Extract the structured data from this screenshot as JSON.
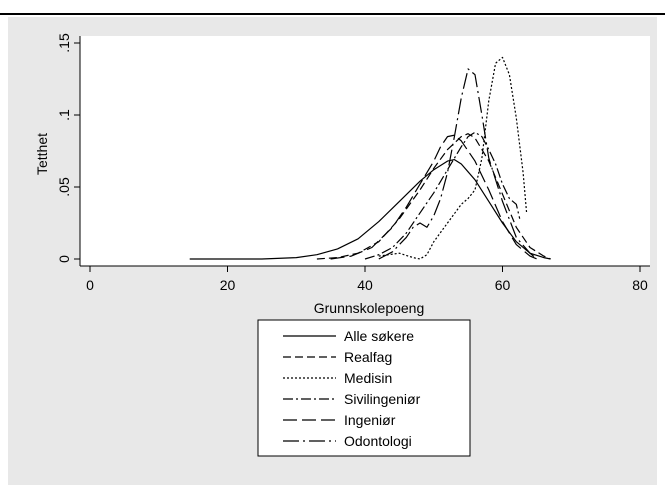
{
  "chart_data": {
    "type": "line",
    "xlabel": "Grunnskolepoeng",
    "ylabel": "Tetthet",
    "xlim": [
      0,
      80
    ],
    "ylim": [
      0,
      0.15
    ],
    "x_ticks": [
      "0",
      "20",
      "40",
      "60",
      "80"
    ],
    "y_ticks": [
      "0",
      ".05",
      ".1",
      ".15"
    ],
    "grid": false,
    "legend_position": "bottom",
    "background_color": "#e8e8e8",
    "plot_color": "#ffffff",
    "series": [
      {
        "name": "Alle søkere",
        "dash": "solid",
        "points": [
          [
            14.5,
            0
          ],
          [
            20,
            0
          ],
          [
            25,
            0
          ],
          [
            30,
            0.001
          ],
          [
            33,
            0.003
          ],
          [
            36,
            0.007
          ],
          [
            39,
            0.014
          ],
          [
            42,
            0.026
          ],
          [
            45,
            0.04
          ],
          [
            48,
            0.054
          ],
          [
            50,
            0.062
          ],
          [
            52,
            0.068
          ],
          [
            53,
            0.069
          ],
          [
            54,
            0.066
          ],
          [
            56,
            0.055
          ],
          [
            58,
            0.04
          ],
          [
            60,
            0.025
          ],
          [
            62,
            0.012
          ],
          [
            64,
            0.004
          ],
          [
            66,
            0.001
          ],
          [
            67,
            0
          ]
        ]
      },
      {
        "name": "Realfag",
        "dash": "dashed",
        "points": [
          [
            33,
            0
          ],
          [
            36,
            0.001
          ],
          [
            39,
            0.004
          ],
          [
            42,
            0.012
          ],
          [
            45,
            0.028
          ],
          [
            48,
            0.048
          ],
          [
            50,
            0.063
          ],
          [
            52,
            0.076
          ],
          [
            54,
            0.085
          ],
          [
            55,
            0.087
          ],
          [
            56,
            0.084
          ],
          [
            58,
            0.068
          ],
          [
            60,
            0.045
          ],
          [
            62,
            0.022
          ],
          [
            64,
            0.008
          ],
          [
            66,
            0.002
          ],
          [
            67,
            0
          ]
        ]
      },
      {
        "name": "Medisin",
        "dash": "dotted",
        "points": [
          [
            42,
            0.002
          ],
          [
            45,
            0.004
          ],
          [
            47,
            0.001
          ],
          [
            48,
            0
          ],
          [
            49,
            0.003
          ],
          [
            50,
            0.012
          ],
          [
            52,
            0.025
          ],
          [
            54,
            0.038
          ],
          [
            55,
            0.042
          ],
          [
            56,
            0.048
          ],
          [
            57,
            0.07
          ],
          [
            58,
            0.11
          ],
          [
            59,
            0.136
          ],
          [
            60,
            0.14
          ],
          [
            61,
            0.128
          ],
          [
            62,
            0.098
          ],
          [
            63,
            0.06
          ],
          [
            63.5,
            0.032
          ]
        ]
      },
      {
        "name": "Sivilingeniør",
        "dash": "dashdot",
        "points": [
          [
            40,
            0
          ],
          [
            42,
            0.003
          ],
          [
            44,
            0.008
          ],
          [
            46,
            0.018
          ],
          [
            48,
            0.032
          ],
          [
            50,
            0.046
          ],
          [
            52,
            0.062
          ],
          [
            54,
            0.078
          ],
          [
            55,
            0.085
          ],
          [
            56,
            0.088
          ],
          [
            57,
            0.085
          ],
          [
            58,
            0.076
          ],
          [
            59,
            0.066
          ],
          [
            60,
            0.052
          ],
          [
            61,
            0.042
          ],
          [
            62,
            0.038
          ],
          [
            62.5,
            0.028
          ]
        ]
      },
      {
        "name": "Ingeniør",
        "dash": "longdash",
        "points": [
          [
            35,
            0
          ],
          [
            38,
            0.002
          ],
          [
            41,
            0.008
          ],
          [
            44,
            0.022
          ],
          [
            46,
            0.036
          ],
          [
            48,
            0.052
          ],
          [
            50,
            0.068
          ],
          [
            51,
            0.078
          ],
          [
            52,
            0.085
          ],
          [
            53,
            0.086
          ],
          [
            54,
            0.082
          ],
          [
            56,
            0.068
          ],
          [
            58,
            0.048
          ],
          [
            60,
            0.026
          ],
          [
            62,
            0.01
          ],
          [
            64,
            0.002
          ],
          [
            65,
            0
          ]
        ]
      },
      {
        "name": "Odontologi",
        "dash": "longdashdot",
        "points": [
          [
            42,
            0
          ],
          [
            44,
            0.005
          ],
          [
            46,
            0.015
          ],
          [
            47,
            0.022
          ],
          [
            48,
            0.025
          ],
          [
            49,
            0.022
          ],
          [
            50,
            0.03
          ],
          [
            51,
            0.042
          ],
          [
            52,
            0.06
          ],
          [
            53,
            0.085
          ],
          [
            54,
            0.112
          ],
          [
            55,
            0.132
          ],
          [
            56,
            0.128
          ],
          [
            57,
            0.1
          ],
          [
            58,
            0.07
          ],
          [
            60,
            0.04
          ],
          [
            62,
            0.015
          ],
          [
            64,
            0.004
          ],
          [
            65,
            0
          ]
        ]
      }
    ]
  }
}
